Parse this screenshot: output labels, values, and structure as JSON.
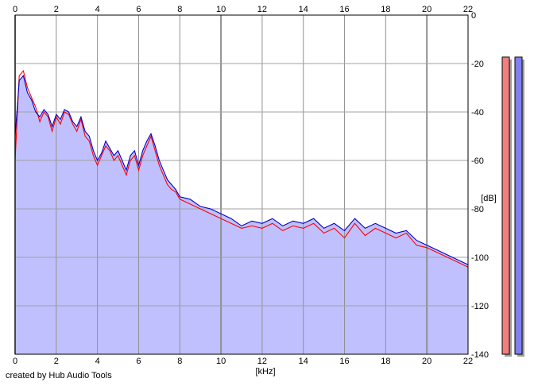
{
  "chart_data": {
    "type": "area",
    "xlabel": "[kHz]",
    "ylabel": "[dB]",
    "xlim": [
      0,
      22
    ],
    "ylim": [
      -140,
      0
    ],
    "x_ticks": [
      0,
      2,
      4,
      6,
      8,
      10,
      12,
      14,
      16,
      18,
      20,
      22
    ],
    "y_ticks": [
      0,
      -20,
      -40,
      -60,
      -80,
      -100,
      -120,
      -140
    ],
    "grid": true,
    "background_fill": "#c0c0ff",
    "series": [
      {
        "color": "#ff0000",
        "x": [
          0,
          0.2,
          0.4,
          0.6,
          0.8,
          1.0,
          1.2,
          1.4,
          1.6,
          1.8,
          2.0,
          2.2,
          2.4,
          2.6,
          2.8,
          3.0,
          3.2,
          3.4,
          3.6,
          3.8,
          4.0,
          4.2,
          4.4,
          4.6,
          4.8,
          5.0,
          5.2,
          5.4,
          5.6,
          5.8,
          6.0,
          6.2,
          6.4,
          6.6,
          6.8,
          7.0,
          7.2,
          7.4,
          7.6,
          7.8,
          8.0,
          8.5,
          9.0,
          9.5,
          10.0,
          10.5,
          11.0,
          11.5,
          12.0,
          12.5,
          13.0,
          13.5,
          14.0,
          14.5,
          15.0,
          15.5,
          16.0,
          16.5,
          17.0,
          17.5,
          18.0,
          18.5,
          19.0,
          19.5,
          20.0,
          20.5,
          21.0,
          21.5,
          22.0
        ],
        "values": [
          -60,
          -25,
          -23,
          -30,
          -34,
          -38,
          -44,
          -40,
          -42,
          -48,
          -42,
          -45,
          -40,
          -41,
          -45,
          -48,
          -43,
          -50,
          -52,
          -58,
          -62,
          -58,
          -54,
          -56,
          -60,
          -58,
          -62,
          -66,
          -60,
          -58,
          -64,
          -58,
          -54,
          -50,
          -56,
          -62,
          -66,
          -70,
          -72,
          -73,
          -76,
          -78,
          -80,
          -82,
          -84,
          -86,
          -88,
          -87,
          -88,
          -86,
          -89,
          -87,
          -88,
          -86,
          -90,
          -88,
          -92,
          -86,
          -91,
          -88,
          -90,
          -92,
          -90,
          -95,
          -96,
          -98,
          -100,
          -102,
          -104
        ]
      },
      {
        "color": "#0000cc",
        "x": [
          0,
          0.2,
          0.4,
          0.6,
          0.8,
          1.0,
          1.2,
          1.4,
          1.6,
          1.8,
          2.0,
          2.2,
          2.4,
          2.6,
          2.8,
          3.0,
          3.2,
          3.4,
          3.6,
          3.8,
          4.0,
          4.2,
          4.4,
          4.6,
          4.8,
          5.0,
          5.2,
          5.4,
          5.6,
          5.8,
          6.0,
          6.2,
          6.4,
          6.6,
          6.8,
          7.0,
          7.2,
          7.4,
          7.6,
          7.8,
          8.0,
          8.5,
          9.0,
          9.5,
          10.0,
          10.5,
          11.0,
          11.5,
          12.0,
          12.5,
          13.0,
          13.5,
          14.0,
          14.5,
          15.0,
          15.5,
          16.0,
          16.5,
          17.0,
          17.5,
          18.0,
          18.5,
          19.0,
          19.5,
          20.0,
          20.5,
          21.0,
          21.5,
          22.0
        ],
        "values": [
          -50,
          -27,
          -25,
          -32,
          -35,
          -40,
          -42,
          -39,
          -41,
          -46,
          -41,
          -43,
          -39,
          -40,
          -44,
          -46,
          -42,
          -48,
          -50,
          -56,
          -60,
          -57,
          -52,
          -55,
          -58,
          -56,
          -60,
          -64,
          -58,
          -56,
          -62,
          -56,
          -52,
          -49,
          -54,
          -60,
          -64,
          -68,
          -70,
          -72,
          -75,
          -76,
          -79,
          -80,
          -82,
          -84,
          -87,
          -85,
          -86,
          -84,
          -87,
          -85,
          -86,
          -84,
          -88,
          -86,
          -89,
          -84,
          -88,
          -86,
          -88,
          -90,
          -89,
          -93,
          -95,
          -97,
          -99,
          -101,
          -103
        ]
      }
    ],
    "level_meters": [
      {
        "color": "#f08080",
        "level": 0.926
      },
      {
        "color": "#8080f0",
        "level": 0.926
      }
    ]
  },
  "credit": "created by Hub Audio Tools"
}
